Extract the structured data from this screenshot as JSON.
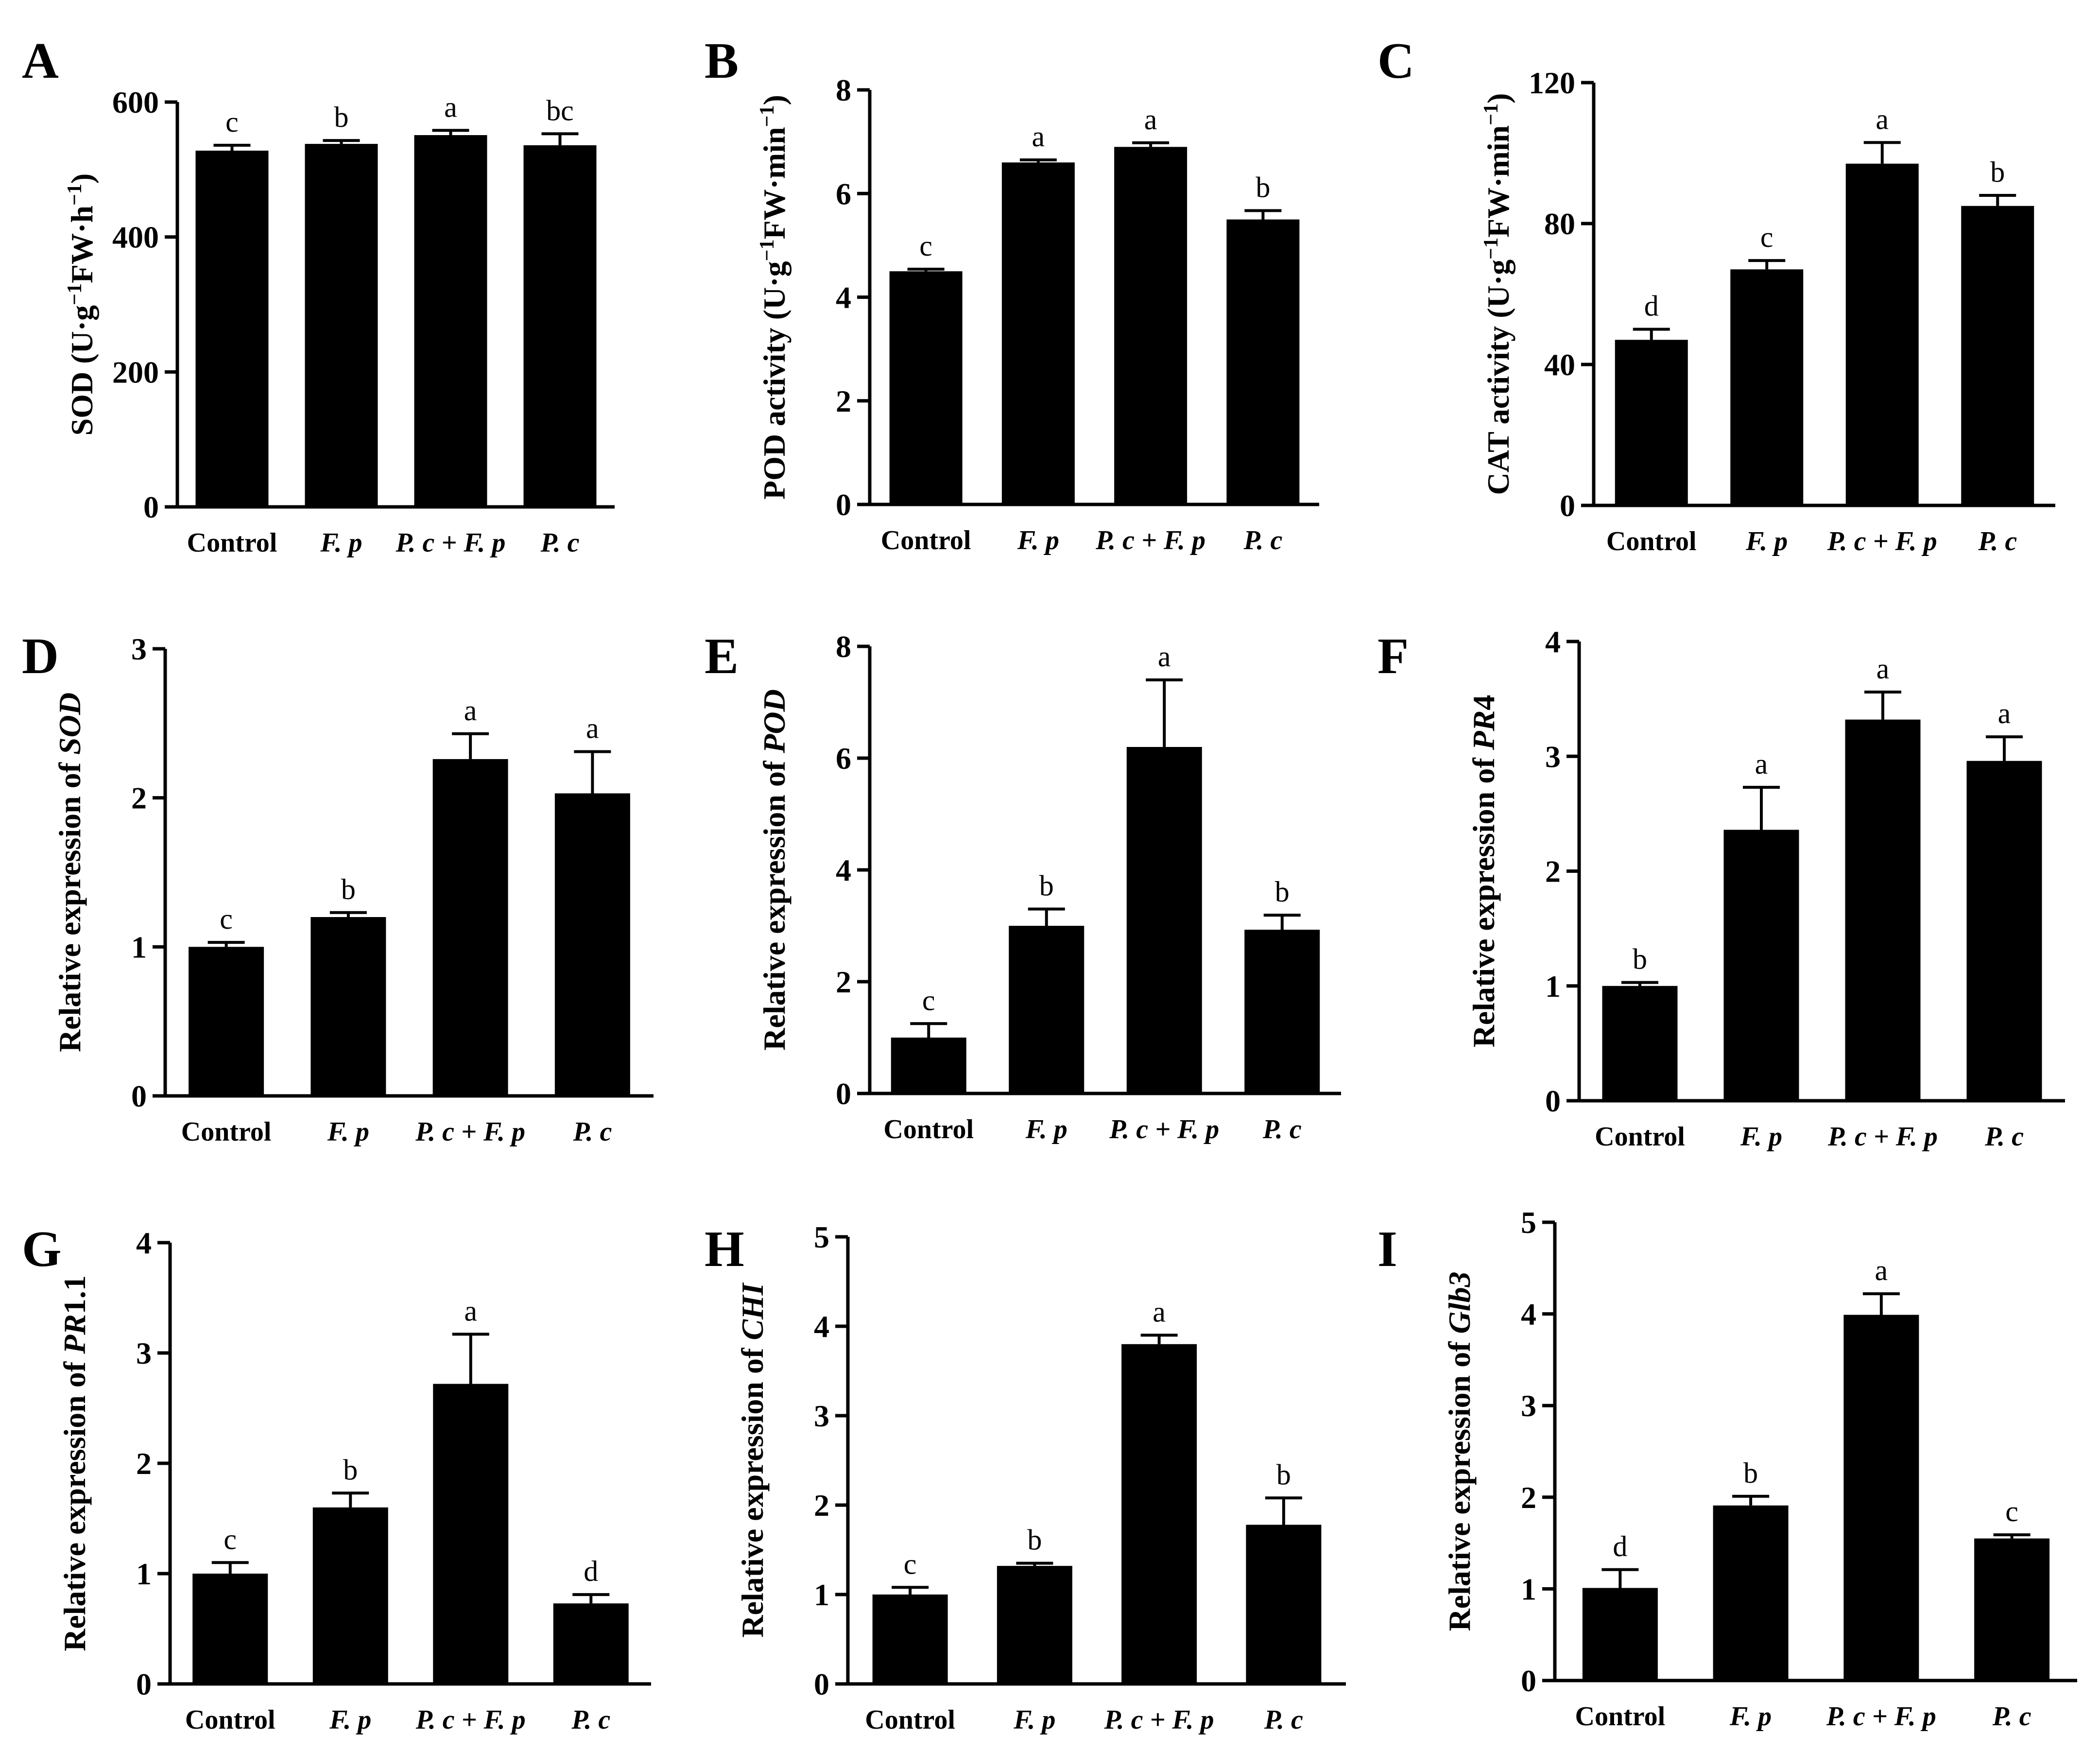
{
  "figure": {
    "background": "#ffffff",
    "bar_color": "#000000",
    "categories": [
      "Control",
      "F. p",
      "P. c + F. p",
      "P. c"
    ],
    "category_italic": [
      false,
      true,
      true,
      true
    ]
  },
  "chart_data": [
    {
      "panel": "A",
      "type": "bar",
      "ylabel_parts": [
        {
          "t": "SOD (U·g"
        },
        {
          "t": "−1",
          "sup": true
        },
        {
          "t": "FW·h"
        },
        {
          "t": "−1",
          "sup": true
        },
        {
          "t": ")"
        }
      ],
      "ylim": [
        0,
        600
      ],
      "ticks": [
        0,
        200,
        400,
        600
      ],
      "values": [
        528,
        538,
        551,
        536
      ],
      "errors": [
        8,
        5,
        7,
        17
      ],
      "letters": [
        "c",
        "b",
        "a",
        "bc"
      ]
    },
    {
      "panel": "B",
      "type": "bar",
      "ylabel_parts": [
        {
          "t": "POD activity (U·g"
        },
        {
          "t": "−1",
          "sup": true
        },
        {
          "t": "FW·min"
        },
        {
          "t": "−1",
          "sup": true
        },
        {
          "t": ")"
        }
      ],
      "ylim": [
        0,
        8
      ],
      "ticks": [
        0,
        2,
        4,
        6,
        8
      ],
      "values": [
        4.5,
        6.6,
        6.9,
        5.5
      ],
      "errors": [
        0.04,
        0.05,
        0.08,
        0.17
      ],
      "letters": [
        "c",
        "a",
        "a",
        "b"
      ]
    },
    {
      "panel": "C",
      "type": "bar",
      "ylabel_parts": [
        {
          "t": "CAT activity (U·g"
        },
        {
          "t": "−1",
          "sup": true
        },
        {
          "t": "FW·min"
        },
        {
          "t": "−1",
          "sup": true
        },
        {
          "t": ")"
        }
      ],
      "ylim": [
        0,
        120
      ],
      "ticks": [
        0,
        40,
        80,
        120
      ],
      "values": [
        47,
        67,
        97,
        85
      ],
      "errors": [
        3,
        2.5,
        6,
        3
      ],
      "letters": [
        "d",
        "c",
        "a",
        "b"
      ]
    },
    {
      "panel": "D",
      "type": "bar",
      "ylabel_parts": [
        {
          "t": "Relative expression of  "
        },
        {
          "t": "SOD",
          "i": true
        }
      ],
      "ylim": [
        0,
        3
      ],
      "ticks": [
        0,
        1,
        2,
        3
      ],
      "values": [
        1.0,
        1.2,
        2.26,
        2.03
      ],
      "errors": [
        0.03,
        0.03,
        0.17,
        0.28
      ],
      "letters": [
        "c",
        "b",
        "a",
        "a"
      ]
    },
    {
      "panel": "E",
      "type": "bar",
      "ylabel_parts": [
        {
          "t": "Relative expression of  "
        },
        {
          "t": "POD",
          "i": true
        }
      ],
      "ylim": [
        0,
        8
      ],
      "ticks": [
        0,
        2,
        4,
        6,
        8
      ],
      "values": [
        1.0,
        3.0,
        6.2,
        2.93
      ],
      "errors": [
        0.25,
        0.3,
        1.2,
        0.26
      ],
      "letters": [
        "c",
        "b",
        "a",
        "b"
      ]
    },
    {
      "panel": "F",
      "type": "bar",
      "ylabel_parts": [
        {
          "t": "Relative expression of  "
        },
        {
          "t": "PR",
          "i": true
        },
        {
          "t": "4"
        }
      ],
      "ylim": [
        0,
        4
      ],
      "ticks": [
        0,
        1,
        2,
        3,
        4
      ],
      "values": [
        1.0,
        2.36,
        3.32,
        2.96
      ],
      "errors": [
        0.03,
        0.37,
        0.24,
        0.21
      ],
      "letters": [
        "b",
        "a",
        "a",
        "a"
      ]
    },
    {
      "panel": "G",
      "type": "bar",
      "ylabel_parts": [
        {
          "t": "Relative expression of  "
        },
        {
          "t": "PR",
          "i": true
        },
        {
          "t": "1.1"
        }
      ],
      "ylim": [
        0,
        4
      ],
      "ticks": [
        0,
        1,
        2,
        3,
        4
      ],
      "values": [
        1.0,
        1.6,
        2.72,
        0.73
      ],
      "errors": [
        0.1,
        0.13,
        0.45,
        0.08
      ],
      "letters": [
        "c",
        "b",
        "a",
        "d"
      ]
    },
    {
      "panel": "H",
      "type": "bar",
      "ylabel_parts": [
        {
          "t": "Relative expression of  "
        },
        {
          "t": "CHI",
          "i": true
        }
      ],
      "ylim": [
        0,
        5
      ],
      "ticks": [
        0,
        1,
        2,
        3,
        4,
        5
      ],
      "values": [
        1.0,
        1.32,
        3.8,
        1.78
      ],
      "errors": [
        0.08,
        0.03,
        0.1,
        0.3
      ],
      "letters": [
        "c",
        "b",
        "a",
        "b"
      ]
    },
    {
      "panel": "I",
      "type": "bar",
      "ylabel_parts": [
        {
          "t": "Relative expression of  "
        },
        {
          "t": "Glb3",
          "i": true
        }
      ],
      "ylim": [
        0,
        5
      ],
      "ticks": [
        0,
        1,
        2,
        3,
        4,
        5
      ],
      "values": [
        1.01,
        1.91,
        3.99,
        1.55
      ],
      "errors": [
        0.2,
        0.1,
        0.23,
        0.04
      ],
      "letters": [
        "d",
        "b",
        "a",
        "c"
      ]
    }
  ]
}
